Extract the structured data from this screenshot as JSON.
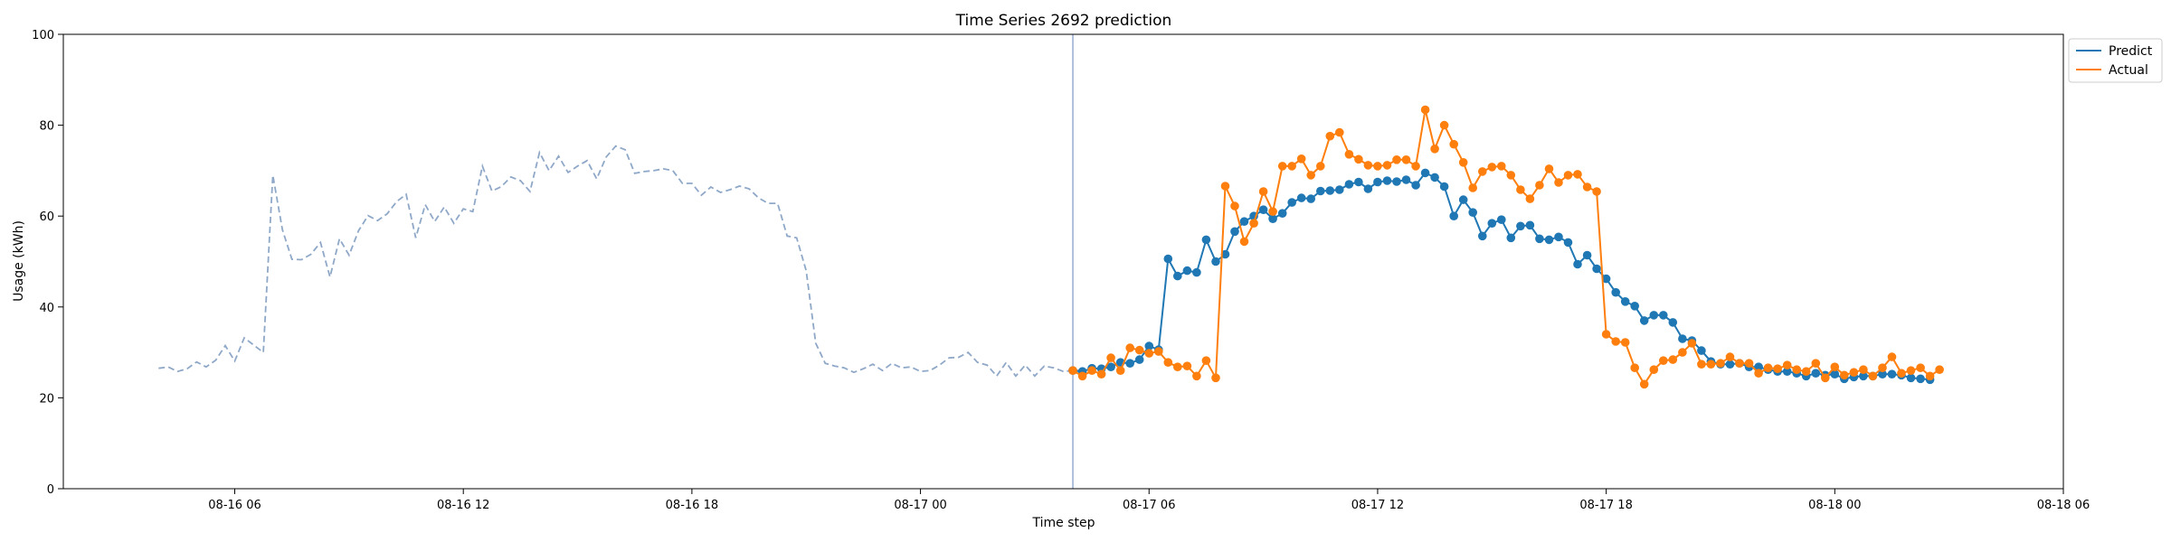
{
  "chart_data": {
    "type": "line",
    "title": "Time Series 2692 prediction",
    "xlabel": "Time step",
    "ylabel": "Usage (kWh)",
    "ylim": [
      0,
      100
    ],
    "xlim": [
      "08-16 01:30",
      "08-18 06:00"
    ],
    "y_ticks": [
      0,
      20,
      40,
      60,
      80,
      100
    ],
    "x_ticks": [
      {
        "at": "08-16 06:00",
        "label": "08-16 06"
      },
      {
        "at": "08-16 12:00",
        "label": "08-16 12"
      },
      {
        "at": "08-16 18:00",
        "label": "08-16 18"
      },
      {
        "at": "08-17 00:00",
        "label": "08-17 00"
      },
      {
        "at": "08-17 06:00",
        "label": "08-17 06"
      },
      {
        "at": "08-17 12:00",
        "label": "08-17 12"
      },
      {
        "at": "08-17 18:00",
        "label": "08-17 18"
      },
      {
        "at": "08-18 00:00",
        "label": "08-18 00"
      },
      {
        "at": "08-18 06:00",
        "label": "08-18 06"
      }
    ],
    "legend": {
      "position": "top-right",
      "entries": [
        "Predict",
        "Actual"
      ]
    },
    "grid": false,
    "colors": {
      "history": "#8fa8c8",
      "predict": "#1f77b4",
      "actual": "#ff7f0e",
      "divider": "#7b96c4"
    },
    "history": {
      "start": "08-16 04:00",
      "step_minutes": 15,
      "values": [
        26.5,
        26.8,
        25.8,
        26.4,
        27.9,
        26.8,
        28.3,
        31.5,
        28.1,
        33.2,
        31.6,
        30.0,
        69.0,
        57.0,
        50.5,
        50.4,
        51.6,
        54.2,
        46.6,
        55.0,
        51.4,
        56.8,
        60.1,
        59.0,
        60.5,
        63.2,
        64.8,
        55.2,
        62.5,
        58.8,
        62.0,
        58.4,
        61.6,
        61.0,
        71.0,
        65.5,
        66.5,
        68.6,
        67.8,
        65.4,
        74.0,
        70.0,
        73.2,
        69.6,
        71.0,
        72.2,
        68.2,
        73.0,
        75.4,
        74.6,
        69.4,
        69.8,
        70.0,
        70.4,
        70.0,
        67.2,
        67.2,
        64.6,
        66.4,
        65.2,
        65.8,
        66.6,
        66.0,
        64.0,
        62.8,
        62.8,
        55.6,
        55.2,
        48.0,
        32.0,
        27.6,
        27.0,
        26.6,
        25.6,
        26.4,
        27.4,
        26.0,
        27.6,
        26.6,
        26.8,
        25.8,
        26.0,
        27.2,
        28.8,
        28.9,
        30.0,
        27.8,
        27.2,
        24.8,
        27.8,
        24.8,
        27.2,
        24.8,
        27.0,
        26.6,
        25.8,
        26.0,
        26.0
      ]
    },
    "forecast_start": "08-17 04:00",
    "series": [
      {
        "name": "Predict",
        "start": "08-17 04:00",
        "step_minutes": 15,
        "values": [
          26.0,
          25.8,
          26.5,
          26.4,
          26.8,
          27.8,
          27.6,
          28.4,
          31.4,
          30.6,
          50.6,
          46.8,
          48.0,
          47.6,
          54.8,
          50.0,
          51.6,
          56.6,
          58.8,
          60.0,
          61.4,
          59.4,
          60.6,
          63.0,
          64.0,
          63.8,
          65.5,
          65.6,
          65.8,
          67.0,
          67.5,
          66.0,
          67.5,
          67.8,
          67.6,
          68.0,
          66.8,
          69.5,
          68.5,
          66.5,
          60.0,
          63.6,
          60.8,
          55.6,
          58.4,
          59.2,
          55.2,
          57.8,
          58.0,
          55.0,
          54.8,
          55.4,
          54.2,
          49.4,
          51.4,
          48.4,
          46.2,
          43.2,
          41.2,
          40.2,
          37.0,
          38.2,
          38.2,
          36.6,
          33.0,
          32.6,
          30.4,
          28.0,
          27.4,
          27.4,
          27.6,
          26.8,
          26.8,
          26.2,
          25.8,
          25.8,
          25.4,
          24.8,
          25.4,
          25.0,
          25.2,
          24.2,
          24.6,
          24.8,
          24.8,
          25.2,
          25.2,
          25.0,
          24.4,
          24.2,
          24.0
        ]
      },
      {
        "name": "Actual",
        "start": "08-17 04:00",
        "step_minutes": 15,
        "values": [
          26.0,
          24.8,
          26.0,
          25.2,
          28.8,
          26.0,
          31.0,
          30.5,
          29.8,
          30.2,
          27.8,
          26.8,
          27.0,
          24.8,
          28.2,
          24.4,
          66.6,
          62.2,
          54.4,
          58.4,
          65.4,
          61.0,
          71.0,
          71.0,
          72.6,
          69.0,
          71.0,
          77.6,
          78.4,
          73.6,
          72.5,
          71.2,
          71.0,
          71.2,
          72.4,
          72.4,
          71.0,
          83.4,
          74.8,
          80.0,
          75.8,
          71.8,
          66.2,
          69.8,
          70.8,
          71.0,
          69.0,
          65.8,
          63.8,
          66.8,
          70.4,
          67.4,
          69.0,
          69.2,
          66.4,
          65.4,
          34.0,
          32.4,
          32.2,
          26.6,
          23.0,
          26.2,
          28.2,
          28.4,
          30.0,
          32.0,
          27.4,
          27.4,
          27.6,
          29.0,
          27.6,
          27.6,
          25.4,
          26.6,
          26.4,
          27.2,
          26.2,
          25.8,
          27.6,
          24.4,
          26.8,
          25.0,
          25.6,
          26.2,
          24.8,
          26.6,
          29.0,
          25.4,
          26.0,
          26.6,
          24.8,
          26.2
        ]
      }
    ]
  }
}
